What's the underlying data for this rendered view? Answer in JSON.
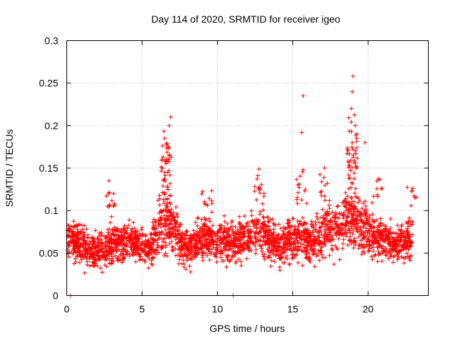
{
  "chart_data": {
    "type": "scatter",
    "title": "Day 114 of 2020, SRMTID for receiver igeo",
    "xlabel": "GPS time / hours",
    "ylabel": "SRMTID / TECUs",
    "xlim": [
      0,
      24
    ],
    "ylim": [
      0,
      0.3
    ],
    "x_ticks": [
      0,
      5,
      10,
      15,
      20
    ],
    "x_tick_labels": [
      "0",
      "5",
      "10",
      "15",
      "20"
    ],
    "y_ticks": [
      0,
      0.05,
      0.1,
      0.15,
      0.2,
      0.25,
      0.3
    ],
    "y_tick_labels": [
      "0",
      "0.05",
      "0.1",
      "0.15",
      "0.2",
      "0.25",
      "0.3"
    ],
    "grid": true,
    "marker": "plus",
    "color": "#ff0000",
    "point_count_estimate": 2800,
    "notable_points": [
      {
        "x": 0.25,
        "y": 0.0
      },
      {
        "x": 11.05,
        "y": 0.0
      },
      {
        "x": 6.9,
        "y": 0.21
      },
      {
        "x": 6.8,
        "y": 0.2
      },
      {
        "x": 6.5,
        "y": 0.185
      },
      {
        "x": 15.7,
        "y": 0.235
      },
      {
        "x": 15.6,
        "y": 0.192
      },
      {
        "x": 19.0,
        "y": 0.258
      },
      {
        "x": 18.95,
        "y": 0.24
      },
      {
        "x": 18.9,
        "y": 0.22
      },
      {
        "x": 19.8,
        "y": 0.18
      },
      {
        "x": 2.8,
        "y": 0.135
      }
    ],
    "envelope": {
      "x": [
        0,
        1,
        2,
        3,
        4,
        5,
        5.5,
        6,
        6.5,
        7,
        7.5,
        8,
        9,
        10,
        11,
        12,
        13,
        14,
        15,
        15.5,
        16,
        17,
        18,
        18.5,
        19,
        19.5,
        20,
        21,
        22,
        23
      ],
      "center": [
        0.065,
        0.06,
        0.05,
        0.06,
        0.065,
        0.06,
        0.055,
        0.075,
        0.09,
        0.085,
        0.065,
        0.055,
        0.07,
        0.065,
        0.062,
        0.07,
        0.075,
        0.06,
        0.065,
        0.07,
        0.06,
        0.075,
        0.08,
        0.085,
        0.09,
        0.085,
        0.075,
        0.065,
        0.06,
        0.07
      ],
      "spread": [
        0.02,
        0.022,
        0.02,
        0.025,
        0.022,
        0.02,
        0.02,
        0.03,
        0.04,
        0.035,
        0.025,
        0.02,
        0.025,
        0.022,
        0.022,
        0.025,
        0.028,
        0.022,
        0.025,
        0.028,
        0.022,
        0.028,
        0.03,
        0.03,
        0.035,
        0.03,
        0.028,
        0.022,
        0.02,
        0.025
      ]
    }
  }
}
